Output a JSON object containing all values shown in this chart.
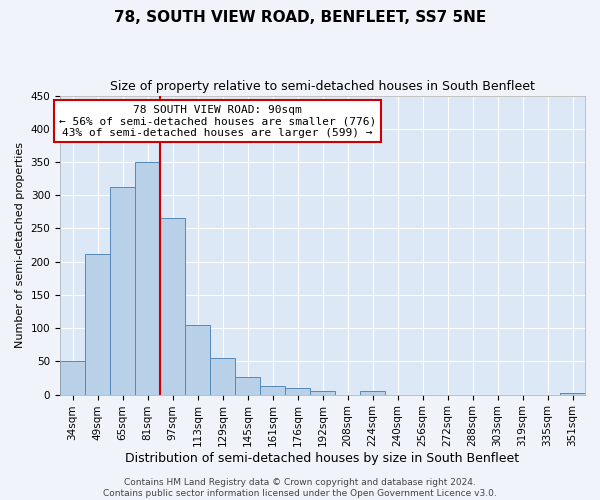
{
  "title": "78, SOUTH VIEW ROAD, BENFLEET, SS7 5NE",
  "subtitle": "Size of property relative to semi-detached houses in South Benfleet",
  "xlabel": "Distribution of semi-detached houses by size in South Benfleet",
  "ylabel": "Number of semi-detached properties",
  "bar_labels": [
    "34sqm",
    "49sqm",
    "65sqm",
    "81sqm",
    "97sqm",
    "113sqm",
    "129sqm",
    "145sqm",
    "161sqm",
    "176sqm",
    "192sqm",
    "208sqm",
    "224sqm",
    "240sqm",
    "256sqm",
    "272sqm",
    "288sqm",
    "303sqm",
    "319sqm",
    "335sqm",
    "351sqm"
  ],
  "bar_values": [
    51,
    211,
    312,
    350,
    266,
    104,
    55,
    27,
    13,
    10,
    5,
    0,
    5,
    0,
    0,
    0,
    0,
    0,
    0,
    0,
    2
  ],
  "bar_color": "#b8d0e8",
  "bar_edge_color": "#5588bb",
  "fig_bg_color": "#f0f4fa",
  "ax_bg_color": "#dce8f5",
  "ylim": [
    0,
    450
  ],
  "yticks": [
    0,
    50,
    100,
    150,
    200,
    250,
    300,
    350,
    400,
    450
  ],
  "vline_color": "#cc0000",
  "annotation_title": "78 SOUTH VIEW ROAD: 90sqm",
  "annotation_line1": "← 56% of semi-detached houses are smaller (776)",
  "annotation_line2": "43% of semi-detached houses are larger (599) →",
  "annotation_box_color": "#ffffff",
  "annotation_box_edge": "#cc0000",
  "footer_line1": "Contains HM Land Registry data © Crown copyright and database right 2024.",
  "footer_line2": "Contains public sector information licensed under the Open Government Licence v3.0.",
  "title_fontsize": 11,
  "subtitle_fontsize": 9,
  "xlabel_fontsize": 9,
  "ylabel_fontsize": 8,
  "tick_fontsize": 7.5,
  "annotation_fontsize": 8,
  "footer_fontsize": 6.5
}
